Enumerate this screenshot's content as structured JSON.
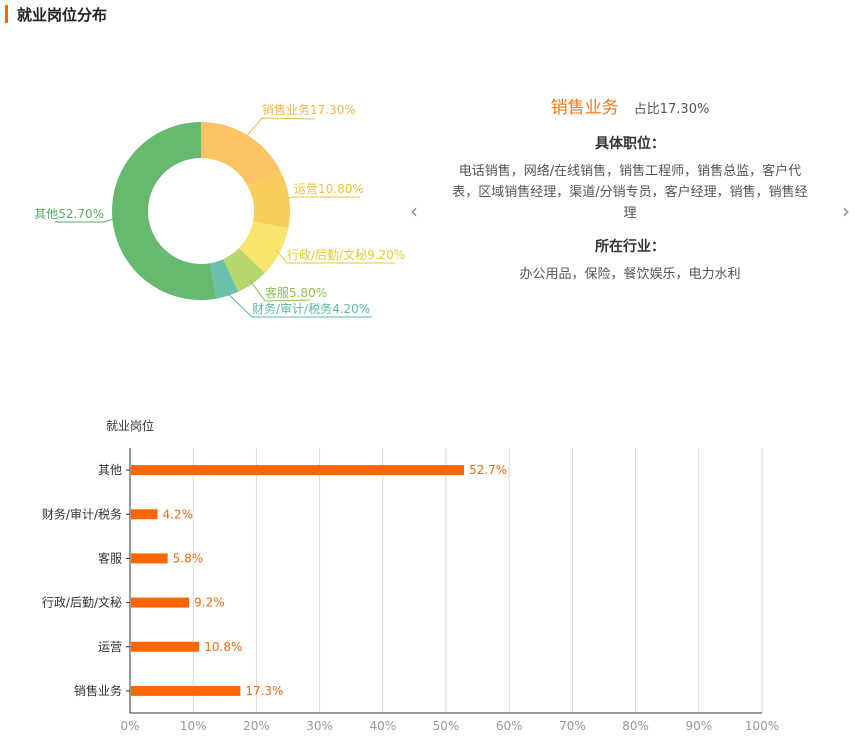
{
  "section": {
    "title": "就业岗位分布"
  },
  "donut_colors": [
    "#fdc466",
    "#f7cd5c",
    "#f9e46e",
    "#b6d86e",
    "#6cc1ad",
    "#66b96f"
  ],
  "label_colors": [
    "#f2b84a",
    "#f0c040",
    "#e6cb34",
    "#8fc24c",
    "#5cb8a2",
    "#5aac63"
  ],
  "detail": {
    "name": "销售业务",
    "share": "占比17.30%",
    "positions_label": "具体职位：",
    "positions": "电话销售，网络/在线销售，销售工程师，销售总监，客户代表，区域销售经理，渠道/分销专员，客户经理，销售，销售经理",
    "industry_label": "所在行业：",
    "industries": "办公用品，保险，餐饮娱乐，电力水利",
    "prev_icon": "chevron-left-icon",
    "next_icon": "chevron-right-icon"
  },
  "bar_color": "#ff6600",
  "chart_data": [
    {
      "type": "pie",
      "categories": [
        "销售业务",
        "运营",
        "行政/后勤/文秘",
        "客服",
        "财务/审计/税务",
        "其他"
      ],
      "values": [
        17.3,
        10.8,
        9.2,
        5.8,
        4.2,
        52.7
      ],
      "labels": [
        "销售业务17.30%",
        "运营10.80%",
        "行政/后勤/文秘9.20%",
        "客服5.80%",
        "财务/审计/税务4.20%",
        "其他52.70%"
      ]
    },
    {
      "type": "bar",
      "orientation": "horizontal",
      "ylabel": "就业岗位",
      "categories": [
        "其他",
        "财务/审计/税务",
        "客服",
        "行政/后勤/文秘",
        "运营",
        "销售业务"
      ],
      "values": [
        52.7,
        4.2,
        5.8,
        9.2,
        10.8,
        17.3
      ],
      "value_labels": [
        "52.7%",
        "4.2%",
        "5.8%",
        "9.2%",
        "10.8%",
        "17.3%"
      ],
      "xlim": [
        0,
        100
      ],
      "xticks": [
        "0%",
        "10%",
        "20%",
        "30%",
        "40%",
        "50%",
        "60%",
        "70%",
        "80%",
        "90%",
        "100%"
      ],
      "grid": true
    }
  ]
}
